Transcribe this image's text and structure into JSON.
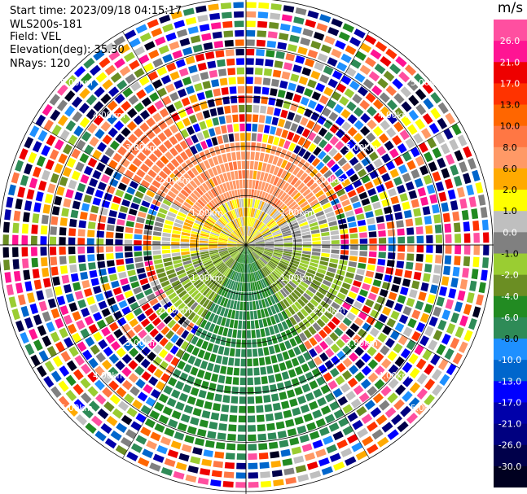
{
  "header": {
    "start_time": "Start time: 2023/09/18 04:15:17",
    "instrument": "WLS200s-181",
    "field": "Field: VEL",
    "elevation": "Elevation(deg): 35.30",
    "nrays": "NRays: 120"
  },
  "chart_data": {
    "type": "ppi-polar",
    "field": "VEL",
    "units": "m/s",
    "nrays": 120,
    "max_range_km": 5.0,
    "ring_labels": [
      "1.00km",
      "2.00km",
      "3.00km",
      "4.00km",
      "5.00km"
    ],
    "ring_values_km": [
      1,
      2,
      3,
      4,
      5
    ],
    "colorbar": {
      "ticks": [
        "26.0",
        "21.0",
        "17.0",
        "13.0",
        "10.0",
        "8.0",
        "6.0",
        "2.0",
        "1.0",
        "0.0",
        "-1.0",
        "-2.0",
        "-4.0",
        "-6.0",
        "-8.0",
        "-10.0",
        "-13.0",
        "-17.0",
        "-21.0",
        "-26.0",
        "-30.0"
      ],
      "colors": [
        "#ff4fa0",
        "#ff1493",
        "#ee0000",
        "#ff3300",
        "#ff6600",
        "#ff7744",
        "#ff9966",
        "#ffaa00",
        "#ffff00",
        "#bfbfbf",
        "#808080",
        "#9acd32",
        "#6b8e23",
        "#228b22",
        "#2e8b57",
        "#1e90ff",
        "#0066cc",
        "#0000ff",
        "#0000aa",
        "#000080",
        "#00004a",
        "#000020"
      ]
    },
    "regions": [
      {
        "azimuth_start": 300,
        "azimuth_end": 60,
        "range_km": [
          0.0,
          1.0
        ],
        "value_ms": 1.5
      },
      {
        "azimuth_start": 300,
        "azimuth_end": 60,
        "range_km": [
          1.0,
          2.2
        ],
        "value_ms": 7.0
      },
      {
        "azimuth_start": 300,
        "azimuth_end": 330,
        "range_km": [
          2.2,
          3.3
        ],
        "value_ms": 9.0
      },
      {
        "azimuth_start": 60,
        "azimuth_end": 100,
        "range_km": [
          0.0,
          1.4
        ],
        "value_ms": 0.0
      },
      {
        "azimuth_start": 100,
        "azimuth_end": 150,
        "range_km": [
          0.0,
          2.3
        ],
        "value_ms": -2.0
      },
      {
        "azimuth_start": 150,
        "azimuth_end": 210,
        "range_km": [
          0.0,
          4.2
        ],
        "value_ms": -6.0
      },
      {
        "azimuth_start": 210,
        "azimuth_end": 260,
        "range_km": [
          0.0,
          2.0
        ],
        "value_ms": -2.0
      },
      {
        "azimuth_start": 260,
        "azimuth_end": 300,
        "range_km": [
          0.0,
          1.6
        ],
        "value_ms": 1.5
      }
    ],
    "noise_beyond_km": 3.3
  }
}
